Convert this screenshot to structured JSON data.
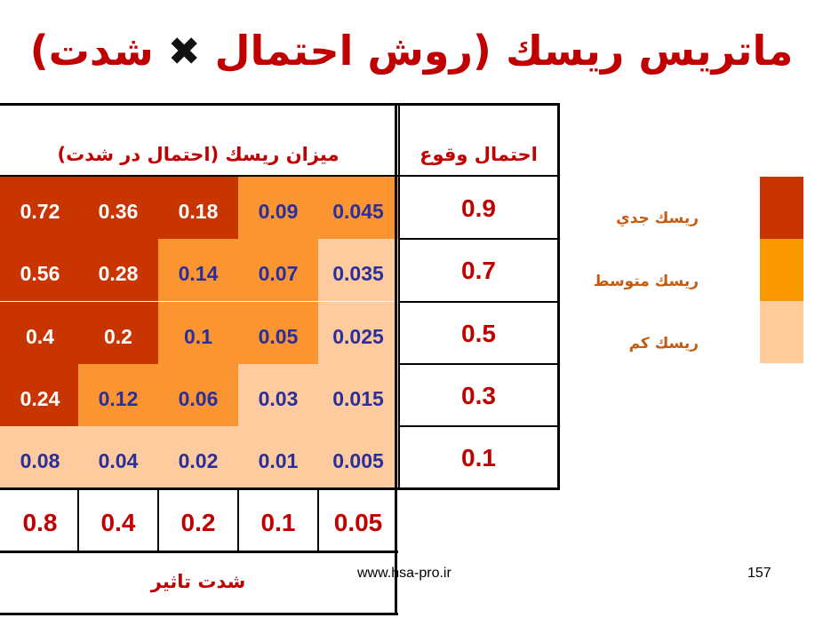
{
  "title": {
    "part1": "ماتریس ریسك (روش احتمال",
    "symbol": "✖",
    "part2": "شدت)"
  },
  "headers": {
    "risk_level": "میزان ریسك (احتمال در شدت)",
    "probability": "احتمال وقوع",
    "severity": "شدت تاثیر"
  },
  "colors": {
    "high": "#c93500",
    "medium": "#fb9531",
    "low": "#fdcb9e",
    "high_text": "#ffffff",
    "low_text": "#2a2f9c",
    "red_text": "#c00000",
    "legend_high": "#c93500",
    "legend_medium": "#fa9800",
    "legend_low": "#fecb9b"
  },
  "matrix": {
    "probabilities": [
      "0.9",
      "0.7",
      "0.5",
      "0.3",
      "0.1"
    ],
    "severities": [
      "0.8",
      "0.4",
      "0.2",
      "0.1",
      "0.05"
    ],
    "rows": [
      {
        "values": [
          "0.72",
          "0.36",
          "0.18",
          "0.09",
          "0.045"
        ],
        "levels": [
          "high",
          "high",
          "high",
          "medium",
          "medium"
        ]
      },
      {
        "values": [
          "0.56",
          "0.28",
          "0.14",
          "0.07",
          "0.035"
        ],
        "levels": [
          "high",
          "high",
          "medium",
          "medium",
          "low"
        ]
      },
      {
        "values": [
          "0.4",
          "0.2",
          "0.1",
          "0.05",
          "0.025"
        ],
        "levels": [
          "high",
          "high",
          "medium",
          "medium",
          "low"
        ]
      },
      {
        "values": [
          "0.24",
          "0.12",
          "0.06",
          "0.03",
          "0.015"
        ],
        "levels": [
          "high",
          "medium",
          "medium",
          "low",
          "low"
        ]
      },
      {
        "values": [
          "0.08",
          "0.04",
          "0.02",
          "0.01",
          "0.005"
        ],
        "levels": [
          "low",
          "low",
          "low",
          "low",
          "low"
        ]
      }
    ]
  },
  "legend": [
    {
      "label": "ریسك جدي",
      "level": "high"
    },
    {
      "label": "ریسك متوسط",
      "level": "medium"
    },
    {
      "label": "ریسك كم",
      "level": "low"
    }
  ],
  "footer": {
    "website": "www.hsa-pro.ir",
    "page_number": "157"
  }
}
